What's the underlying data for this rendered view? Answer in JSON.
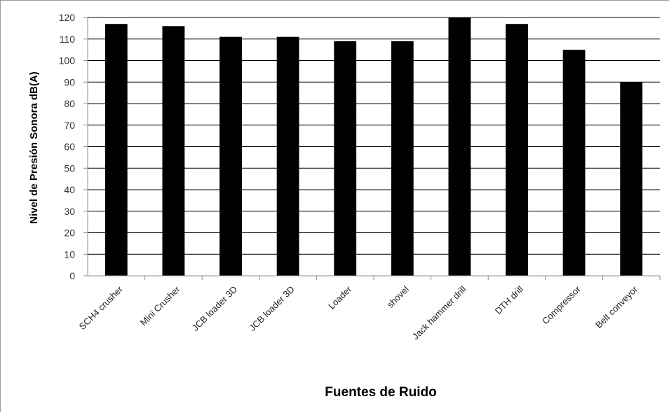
{
  "chart_data": {
    "type": "bar",
    "title": "",
    "xlabel": "Fuentes de Ruido",
    "ylabel": "Nivel de Presión Sonora dB(A)",
    "ylim": [
      0,
      120
    ],
    "ytick_step": 10,
    "grid": true,
    "legend": "none",
    "bar_color": "#000000",
    "grid_color": "#000000",
    "categories": [
      "SCH4 crusher",
      "Mini Crusher",
      "JCB loader 3D",
      "JCB loader 3D",
      "Loader",
      "shovel",
      "Jack hammer drill",
      "DTH drill",
      "Compressor",
      "Belt conveyor"
    ],
    "values": [
      117,
      116,
      111,
      111,
      109,
      109,
      120,
      117,
      105,
      90
    ]
  }
}
